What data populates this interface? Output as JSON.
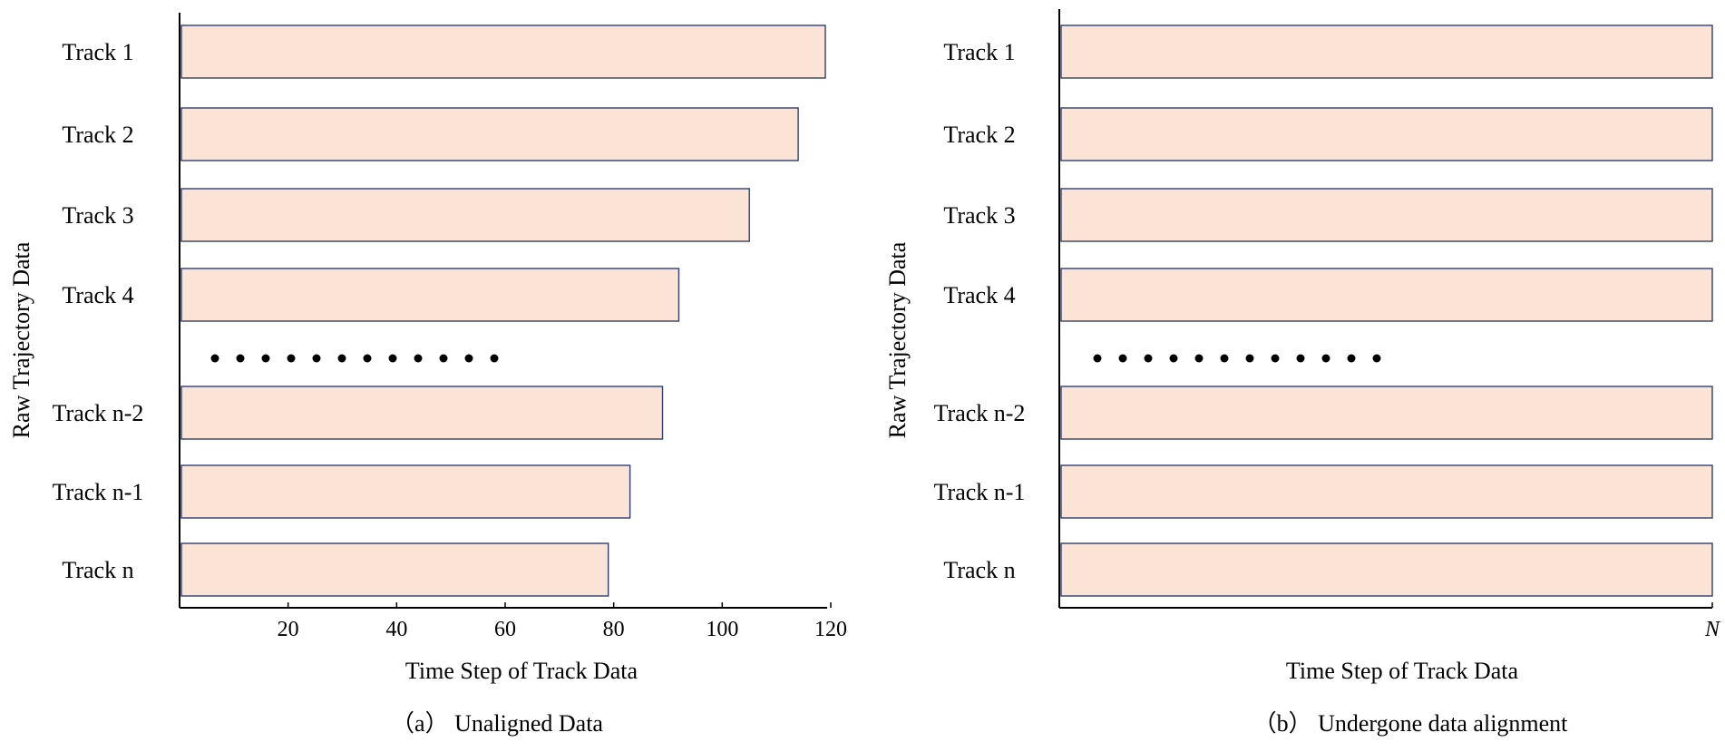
{
  "chart_data": [
    {
      "type": "bar",
      "orientation": "horizontal",
      "categories": [
        "Track 1",
        "Track 2",
        "Track 3",
        "Track 4",
        "Track n-2",
        "Track n-1",
        "Track n"
      ],
      "values": [
        119,
        114,
        105,
        92,
        89,
        83,
        79
      ],
      "ellipsis_between": [
        "Track 4",
        "Track n-2"
      ],
      "xlabel": "Time Step of Track Data",
      "ylabel": "Raw Trajectory Data",
      "xticks": [
        20,
        40,
        60,
        80,
        100,
        120
      ],
      "xlim": [
        0,
        120
      ],
      "caption": "（a） Unaligned Data",
      "grid": false
    },
    {
      "type": "bar",
      "orientation": "horizontal",
      "categories": [
        "Track 1",
        "Track 2",
        "Track 3",
        "Track 4",
        "Track n-2",
        "Track n-1",
        "Track n"
      ],
      "values": [
        "N",
        "N",
        "N",
        "N",
        "N",
        "N",
        "N"
      ],
      "ellipsis_between": [
        "Track 4",
        "Track n-2"
      ],
      "xlabel": "Time Step of Track Data",
      "ylabel": "Raw Trajectory Data",
      "xticks": [
        "N"
      ],
      "caption": "（b） Undergone data alignment",
      "grid": false
    }
  ]
}
